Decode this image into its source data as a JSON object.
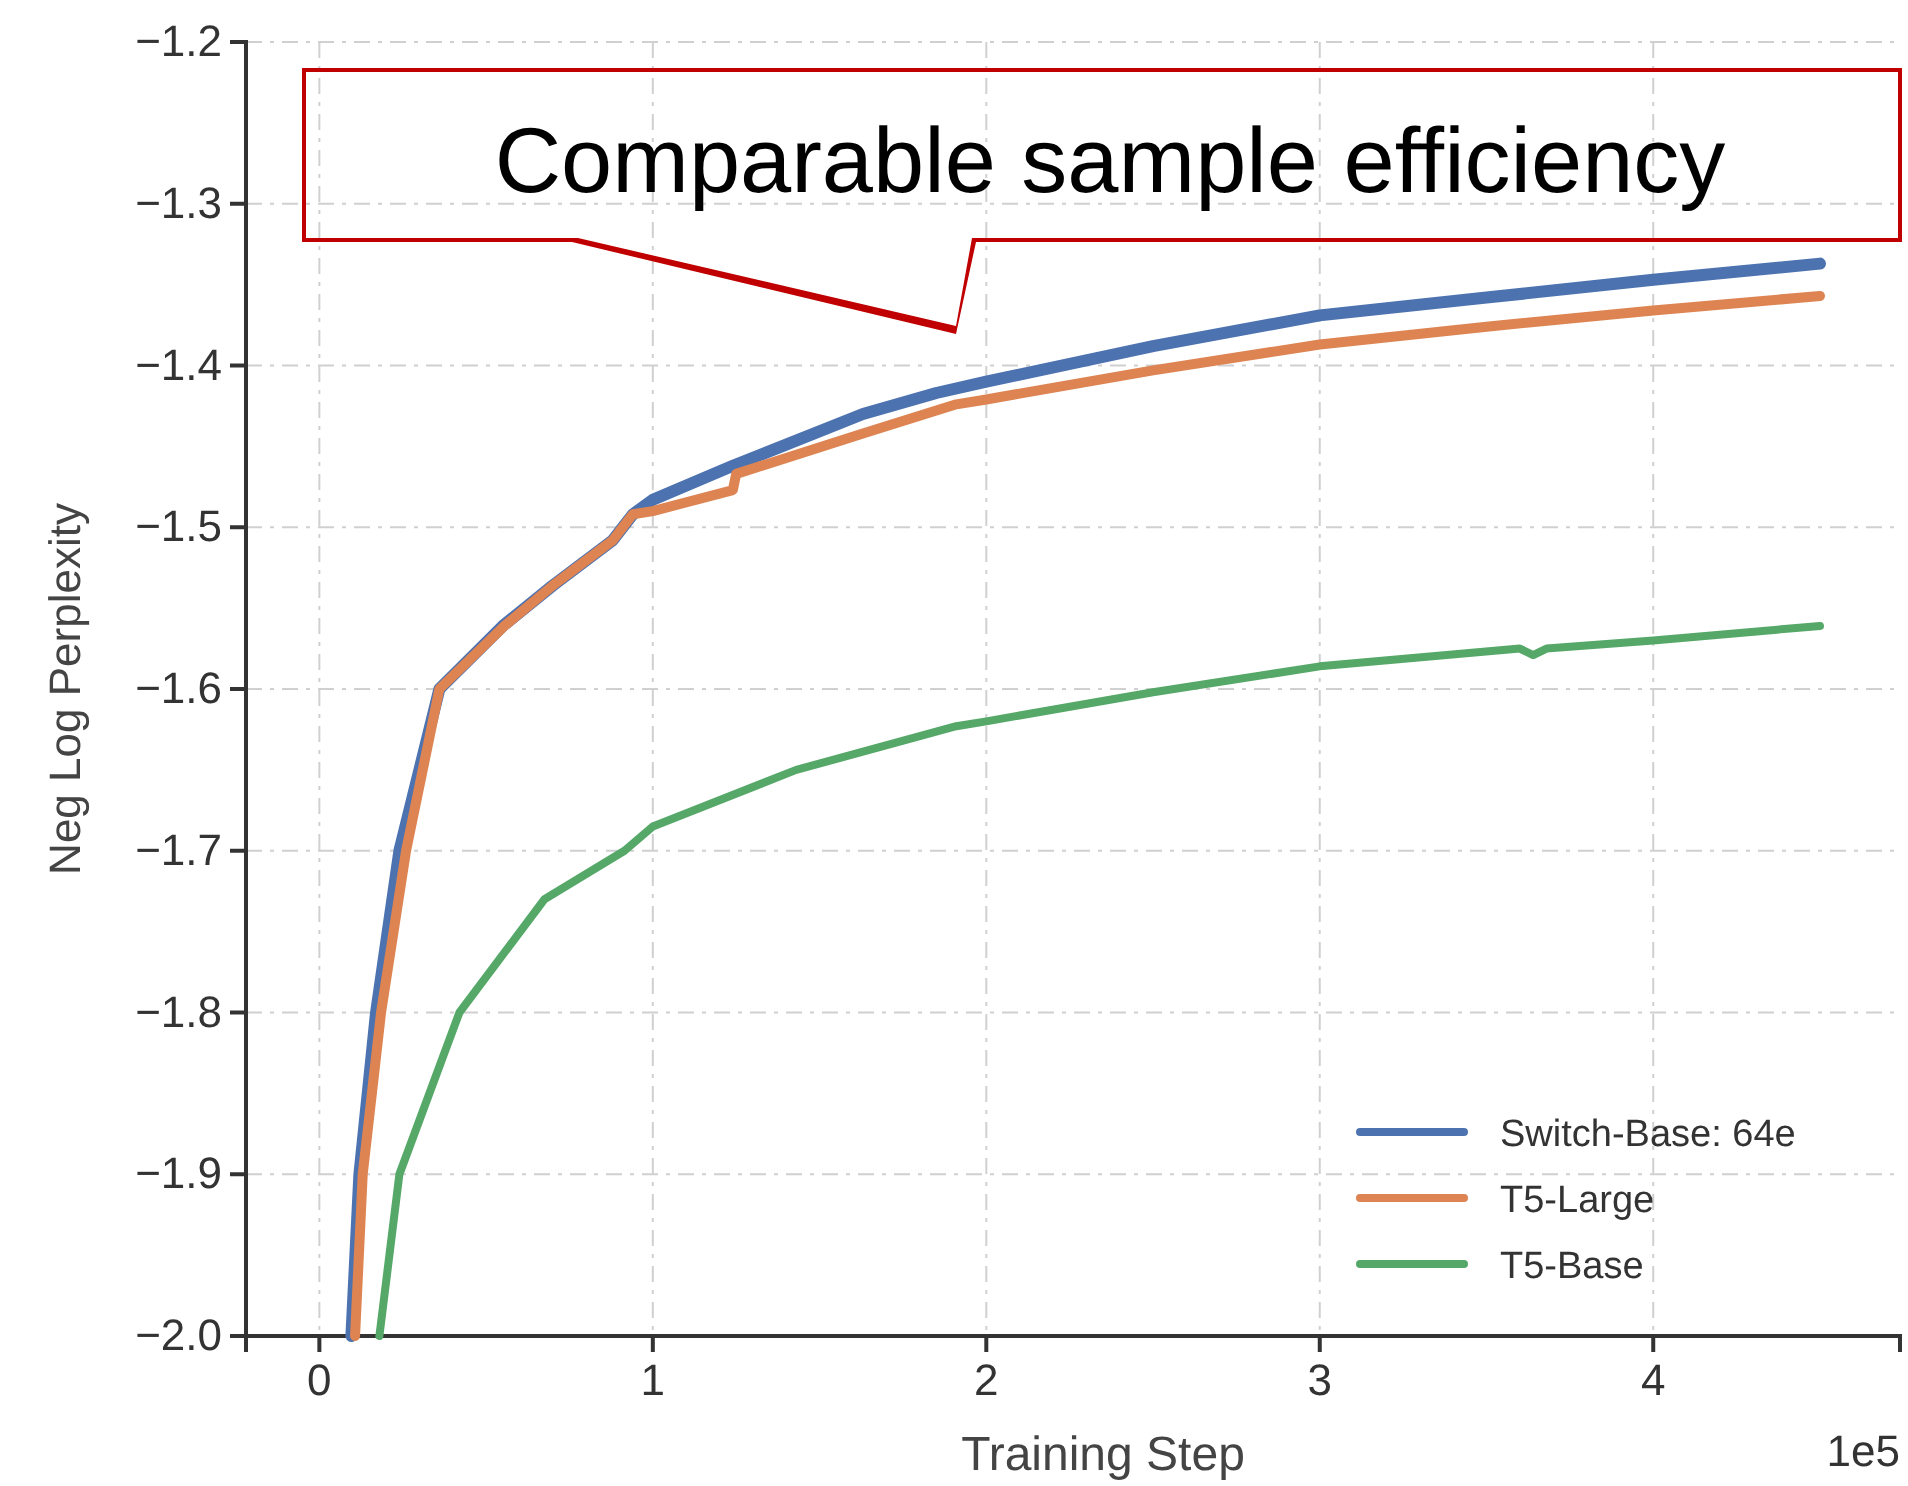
{
  "chart_data": {
    "type": "line",
    "xlabel": "Training Step",
    "ylabel": "Neg Log Perplexity",
    "annotations": [
      "Comparable sample efficiency",
      "1e5"
    ],
    "xlim": [
      -0.22,
      4.74
    ],
    "ylim": [
      -2.0,
      -1.2
    ],
    "xticks": [
      0,
      1,
      2,
      3,
      4
    ],
    "yticks": [
      {
        "value": -2.0,
        "label": "−2.0"
      },
      {
        "value": -1.9,
        "label": "−1.9"
      },
      {
        "value": -1.8,
        "label": "−1.8"
      },
      {
        "value": -1.7,
        "label": "−1.7"
      },
      {
        "value": -1.6,
        "label": "−1.6"
      },
      {
        "value": -1.5,
        "label": "−1.5"
      },
      {
        "value": -1.4,
        "label": "−1.4"
      },
      {
        "value": -1.3,
        "label": "−1.3"
      },
      {
        "value": -1.2,
        "label": "−1.2"
      }
    ],
    "grid": true,
    "legend": "bottom right",
    "line_style": "solid",
    "marker": "none",
    "series": [
      {
        "name": "Switch-Base: 64e",
        "color": "#4c72b0",
        "x": [
          0.096,
          0.12,
          0.17,
          0.24,
          0.36,
          0.55,
          0.7,
          0.88,
          0.94,
          1.0,
          1.24,
          1.63,
          1.85,
          2.0,
          2.5,
          3.0,
          3.5,
          4.0,
          4.5
        ],
        "values": [
          -2.0,
          -1.9,
          -1.8,
          -1.7,
          -1.6,
          -1.561,
          -1.536,
          -1.508,
          -1.492,
          -1.483,
          -1.462,
          -1.43,
          -1.417,
          -1.41,
          -1.388,
          -1.369,
          -1.358,
          -1.347,
          -1.337
        ]
      },
      {
        "name": "T5-Large",
        "color": "#dd8452",
        "x": [
          0.107,
          0.13,
          0.185,
          0.26,
          0.36,
          0.555,
          0.7,
          0.88,
          0.94,
          1.0,
          1.24,
          1.25,
          1.63,
          1.91,
          2.0,
          2.5,
          3.0,
          3.5,
          4.0,
          4.5
        ],
        "values": [
          -2.0,
          -1.9,
          -1.8,
          -1.7,
          -1.6,
          -1.561,
          -1.536,
          -1.508,
          -1.492,
          -1.49,
          -1.477,
          -1.467,
          -1.442,
          -1.424,
          -1.421,
          -1.403,
          -1.387,
          -1.376,
          -1.366,
          -1.357
        ]
      },
      {
        "name": "T5-Base",
        "color": "#55a868",
        "x": [
          0.18,
          0.24,
          0.42,
          0.675,
          0.915,
          1.0,
          1.43,
          1.91,
          2.0,
          2.5,
          3.0,
          3.6,
          3.64,
          3.68,
          4.0,
          4.5
        ],
        "values": [
          -2.0,
          -1.9,
          -1.8,
          -1.73,
          -1.7,
          -1.685,
          -1.65,
          -1.623,
          -1.62,
          -1.602,
          -1.586,
          -1.575,
          -1.579,
          -1.575,
          -1.57,
          -1.561
        ]
      }
    ]
  }
}
